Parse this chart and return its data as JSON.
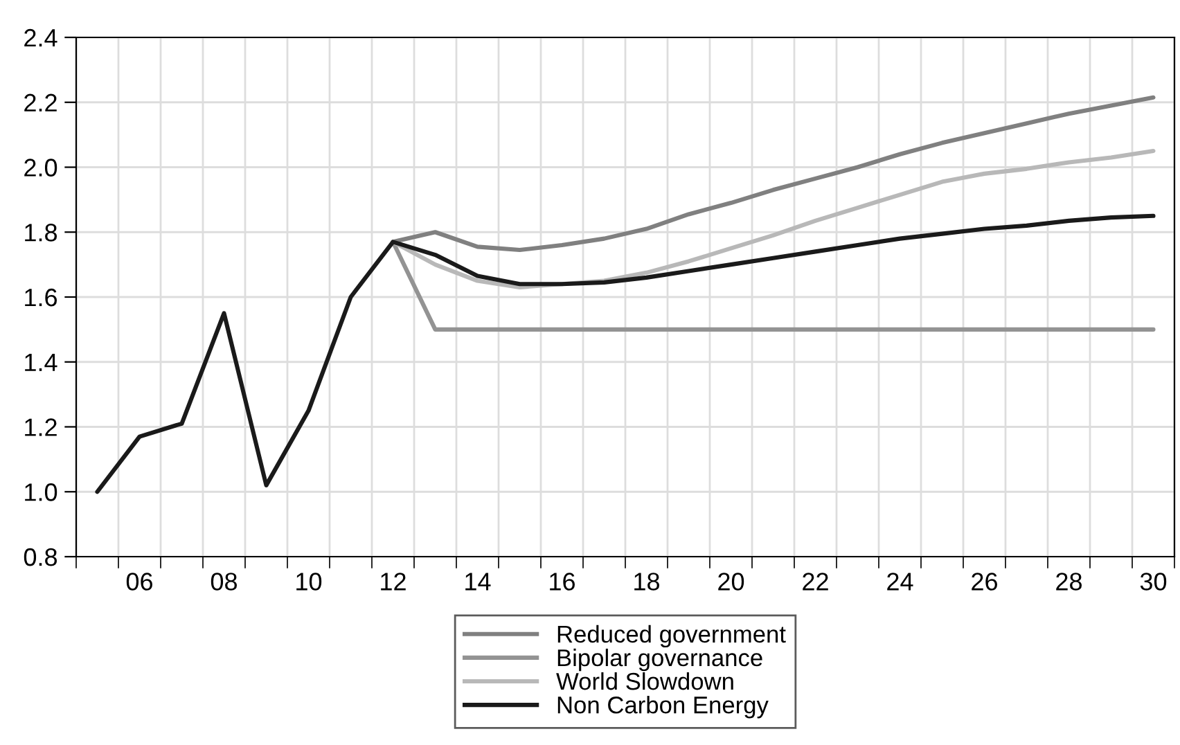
{
  "chart_data": {
    "type": "line",
    "xlim": [
      2004.5,
      2030.5
    ],
    "xticks": [
      {
        "value": 2006,
        "label": "06"
      },
      {
        "value": 2008,
        "label": "08"
      },
      {
        "value": 2010,
        "label": "10"
      },
      {
        "value": 2012,
        "label": "12"
      },
      {
        "value": 2014,
        "label": "14"
      },
      {
        "value": 2016,
        "label": "16"
      },
      {
        "value": 2018,
        "label": "18"
      },
      {
        "value": 2020,
        "label": "20"
      },
      {
        "value": 2022,
        "label": "22"
      },
      {
        "value": 2024,
        "label": "24"
      },
      {
        "value": 2026,
        "label": "26"
      },
      {
        "value": 2028,
        "label": "28"
      },
      {
        "value": 2030,
        "label": "30"
      }
    ],
    "ylim": [
      0.8,
      2.4
    ],
    "yticks": [
      0.8,
      {
        "value": 1,
        "label": "1.0"
      },
      1.2,
      1.4,
      1.6,
      1.8,
      {
        "value": 2,
        "label": "2.0"
      },
      2.2,
      2.4
    ],
    "grid": true,
    "legend": "bottom",
    "line_style": "solid",
    "series": [
      {
        "name": "Reduced government",
        "color": "#808080",
        "x": [
          2012,
          2013,
          2014,
          2015,
          2016,
          2017,
          2018,
          2019,
          2020,
          2021,
          2022,
          2023,
          2024,
          2025,
          2026,
          2027,
          2028,
          2029,
          2030
        ],
        "values": [
          1.77,
          1.8,
          1.755,
          1.745,
          1.76,
          1.78,
          1.81,
          1.855,
          1.89,
          1.93,
          1.965,
          2.0,
          2.04,
          2.075,
          2.105,
          2.135,
          2.165,
          2.19,
          2.215
        ]
      },
      {
        "name": "Bipolar governance",
        "color": "#939393",
        "x": [
          2012,
          2013,
          2014,
          2015,
          2016,
          2017,
          2018,
          2019,
          2020,
          2021,
          2022,
          2023,
          2024,
          2025,
          2026,
          2027,
          2028,
          2029,
          2030
        ],
        "values": [
          1.77,
          1.5,
          1.5,
          1.5,
          1.5,
          1.5,
          1.5,
          1.5,
          1.5,
          1.5,
          1.5,
          1.5,
          1.5,
          1.5,
          1.5,
          1.5,
          1.5,
          1.5,
          1.5
        ]
      },
      {
        "name": "World Slowdown",
        "color": "#b8b8b8",
        "x": [
          2012,
          2013,
          2014,
          2015,
          2016,
          2017,
          2018,
          2019,
          2020,
          2021,
          2022,
          2023,
          2024,
          2025,
          2026,
          2027,
          2028,
          2029,
          2030
        ],
        "values": [
          1.77,
          1.7,
          1.65,
          1.63,
          1.64,
          1.65,
          1.675,
          1.71,
          1.75,
          1.79,
          1.835,
          1.875,
          1.915,
          1.955,
          1.98,
          1.995,
          2.015,
          2.03,
          2.05
        ]
      },
      {
        "name": "Non Carbon Energy",
        "color": "#1a1a1a",
        "x": [
          2005,
          2006,
          2007,
          2008,
          2009,
          2010,
          2011,
          2012,
          2013,
          2014,
          2015,
          2016,
          2017,
          2018,
          2019,
          2020,
          2021,
          2022,
          2023,
          2024,
          2025,
          2026,
          2027,
          2028,
          2029,
          2030
        ],
        "values": [
          1.0,
          1.17,
          1.21,
          1.55,
          1.02,
          1.25,
          1.6,
          1.77,
          1.73,
          1.665,
          1.64,
          1.64,
          1.645,
          1.66,
          1.68,
          1.7,
          1.72,
          1.74,
          1.76,
          1.78,
          1.795,
          1.81,
          1.82,
          1.835,
          1.845,
          1.85
        ]
      }
    ]
  }
}
